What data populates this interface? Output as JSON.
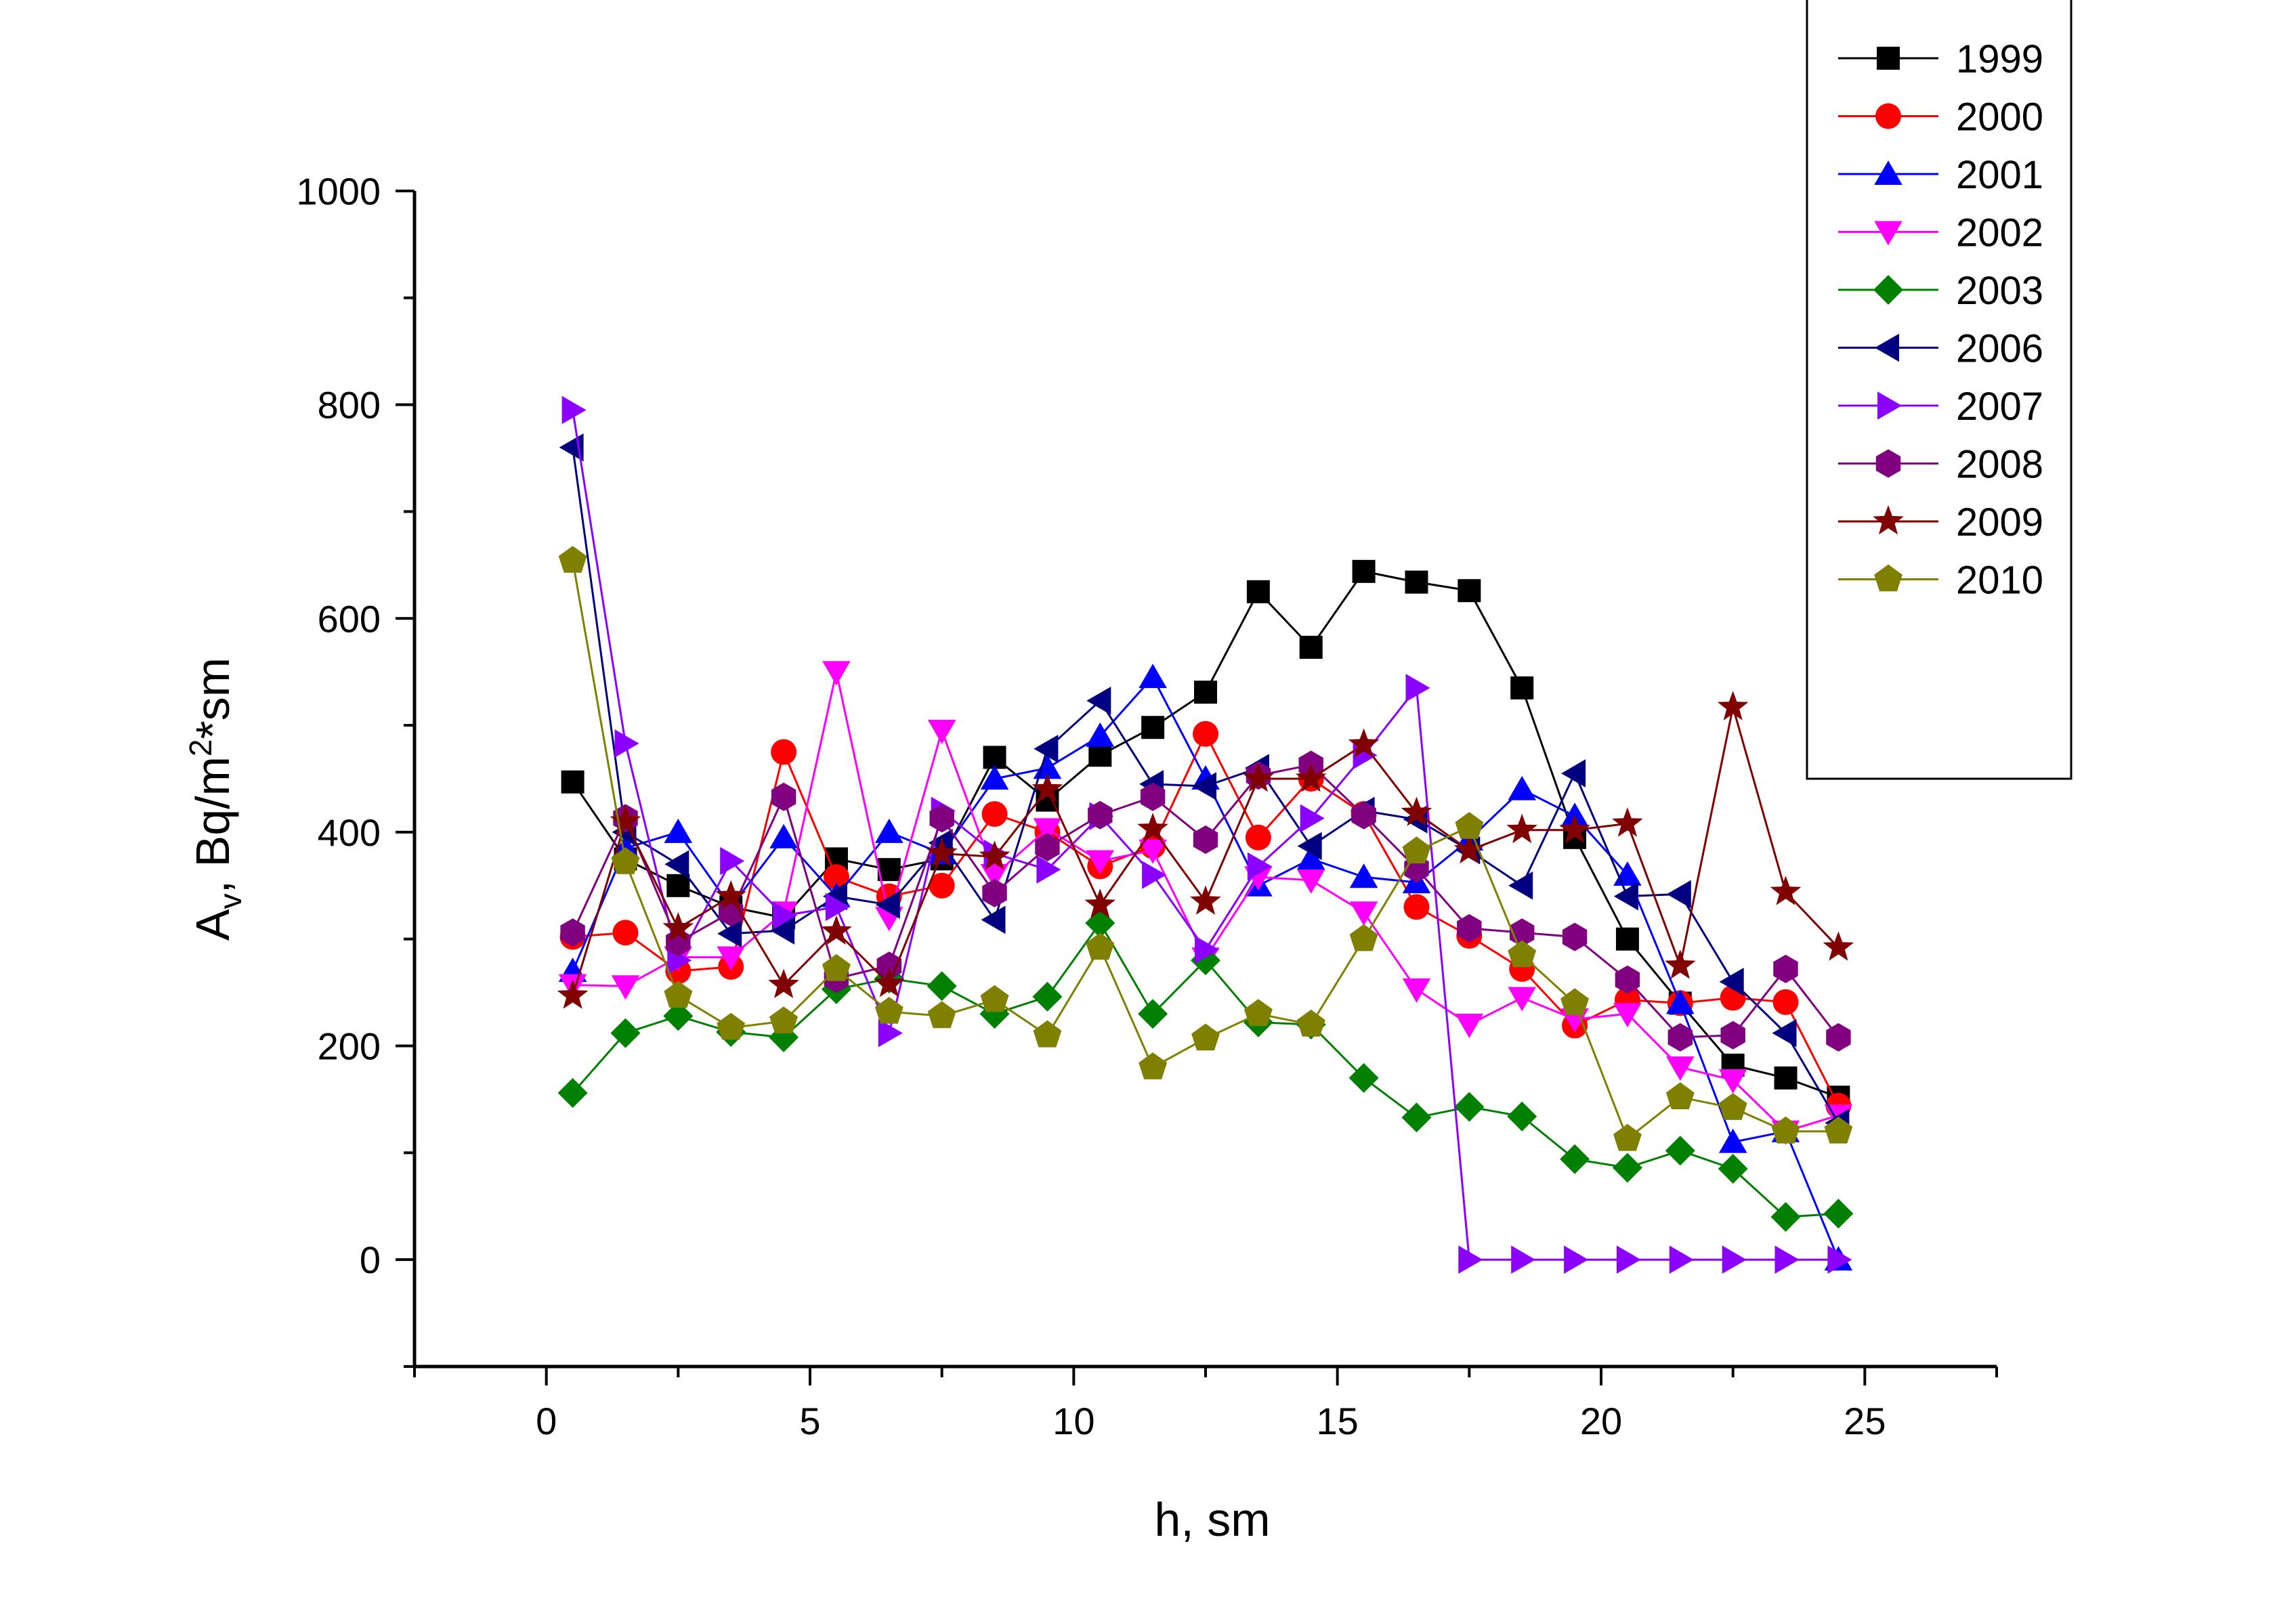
{
  "chart_data": {
    "type": "line",
    "xlabel": "h, sm",
    "ylabel_main": "A",
    "ylabel_sub": "v",
    "ylabel_unit": ", Bq/m",
    "ylabel_sup": "2",
    "ylabel_tail": "*sm",
    "xlim": [
      -2.5,
      27.5
    ],
    "ylim": [
      -100,
      1000
    ],
    "xticks": [
      0,
      5,
      10,
      15,
      20,
      25
    ],
    "yticks": [
      0,
      200,
      400,
      600,
      800,
      1000
    ],
    "legend_position": "top-right",
    "x": [
      0.5,
      1.5,
      2.5,
      3.5,
      4.5,
      5.5,
      6.5,
      7.5,
      8.5,
      9.5,
      10.5,
      11.5,
      12.5,
      13.5,
      14.5,
      15.5,
      16.5,
      17.5,
      18.5,
      19.5,
      20.5,
      21.5,
      22.5,
      23.5,
      24.5
    ],
    "series": [
      {
        "name": "1999",
        "color": "#000000",
        "marker": "square",
        "values": [
          447,
          375,
          350,
          330,
          320,
          375,
          365,
          375,
          470,
          430,
          472,
          498,
          531,
          625,
          573,
          644,
          634,
          626,
          535,
          395,
          300,
          240,
          182,
          170,
          152
        ]
      },
      {
        "name": "2000",
        "color": "#ff0000",
        "marker": "circle",
        "values": [
          302,
          306,
          270,
          274,
          475,
          358,
          340,
          350,
          417,
          400,
          368,
          387,
          492,
          395,
          450,
          417,
          330,
          303,
          272,
          219,
          243,
          240,
          245,
          241,
          144
        ]
      },
      {
        "name": "2001",
        "color": "#0000ff",
        "marker": "triangle-up",
        "values": [
          270,
          385,
          400,
          330,
          395,
          340,
          400,
          380,
          450,
          460,
          490,
          545,
          450,
          350,
          375,
          358,
          353,
          393,
          440,
          415,
          360,
          240,
          110,
          120,
          0
        ]
      },
      {
        "name": "2002",
        "color": "#ff00ff",
        "marker": "triangle-down",
        "values": [
          257,
          256,
          283,
          283,
          325,
          550,
          320,
          495,
          360,
          403,
          373,
          383,
          282,
          358,
          355,
          325,
          253,
          220,
          245,
          225,
          230,
          180,
          168,
          120,
          135
        ]
      },
      {
        "name": "2003",
        "color": "#008000",
        "marker": "diamond",
        "values": [
          156,
          212,
          228,
          213,
          208,
          253,
          263,
          256,
          230,
          246,
          315,
          230,
          280,
          222,
          220,
          170,
          133,
          143,
          134,
          94,
          86,
          102,
          85,
          40,
          43
        ]
      },
      {
        "name": "2006",
        "color": "#000080",
        "marker": "triangle-left",
        "values": [
          760,
          400,
          370,
          305,
          308,
          340,
          332,
          390,
          318,
          478,
          523,
          445,
          443,
          460,
          387,
          420,
          412,
          383,
          350,
          455,
          340,
          342,
          260,
          212,
          128
        ]
      },
      {
        "name": "2007",
        "color": "#8b00ff",
        "marker": "triangle-right",
        "values": [
          795,
          483,
          280,
          373,
          322,
          330,
          212,
          420,
          380,
          365,
          415,
          360,
          290,
          368,
          413,
          472,
          535,
          0,
          0,
          0,
          0,
          0,
          0,
          0,
          0
        ]
      },
      {
        "name": "2008",
        "color": "#800080",
        "marker": "hexagon",
        "values": [
          306,
          413,
          297,
          325,
          433,
          263,
          275,
          413,
          343,
          386,
          416,
          433,
          393,
          453,
          463,
          416,
          366,
          310,
          306,
          302,
          262,
          208,
          210,
          272,
          208
        ]
      },
      {
        "name": "2009",
        "color": "#800000",
        "marker": "star",
        "values": [
          247,
          410,
          310,
          340,
          257,
          307,
          258,
          380,
          377,
          440,
          332,
          403,
          335,
          450,
          450,
          482,
          418,
          383,
          402,
          402,
          408,
          275,
          517,
          344,
          292
        ]
      },
      {
        "name": "2010",
        "color": "#808000",
        "marker": "pentagon",
        "values": [
          654,
          372,
          247,
          217,
          223,
          272,
          232,
          228,
          243,
          210,
          292,
          180,
          207,
          230,
          220,
          300,
          382,
          405,
          285,
          240,
          113,
          152,
          142,
          120,
          120
        ]
      }
    ]
  }
}
